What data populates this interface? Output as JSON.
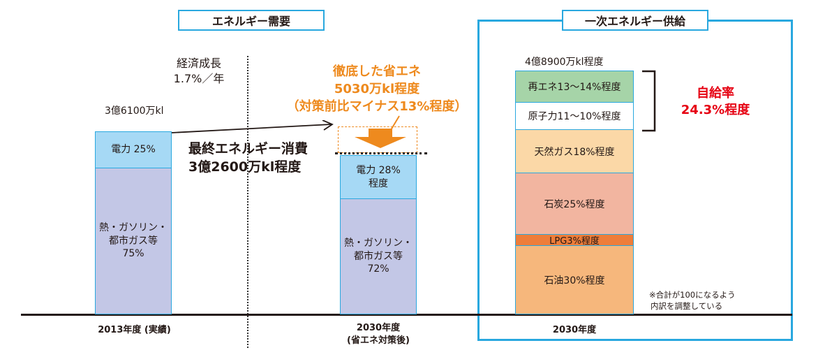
{
  "demand": {
    "header": "エネルギー需要",
    "growth": {
      "line1": "経済成長",
      "line2": "1.7%／年"
    },
    "bar2013": {
      "total": "3億6100万kl",
      "electric": "電力 25%",
      "heat": [
        "熱・ガソリン・",
        "都市ガス等",
        "75%"
      ],
      "axis_label": "2013年度 (実績)"
    },
    "final": {
      "line1": "最終エネルギー消費",
      "line2": "3億2600万kl程度"
    },
    "saving": {
      "line1": "徹底した省エネ",
      "line2": "5030万kl程度",
      "line3": "（対策前比マイナス13%程度）"
    },
    "bar2030": {
      "electric": [
        "電力 28%",
        "程度"
      ],
      "heat": [
        "熱・ガソリン・",
        "都市ガス等",
        "72%"
      ],
      "axis_label": "2030年度",
      "axis_sub": "(省エネ対策後)"
    }
  },
  "supply": {
    "header": "一次エネルギー供給",
    "total": "4億8900万kl程度",
    "segments": [
      {
        "label": "再エネ13～14%程度",
        "color": "#a6d4a8"
      },
      {
        "label": "原子力11～10%程度",
        "color": "#ffffff"
      },
      {
        "label": "天然ガス18%程度",
        "color": "#fbd8a7"
      },
      {
        "label": "石炭25%程度",
        "color": "#f2b5a0"
      },
      {
        "label": "LPG3%程度",
        "color": "#ee7d3a"
      },
      {
        "label": "石油30%程度",
        "color": "#f6b77c"
      }
    ],
    "self_sufficiency": {
      "line1": "自給率",
      "line2": "24.3%程度"
    },
    "note": {
      "line1": "※合計が100になるよう",
      "line2": "内訳を調整している"
    },
    "axis_label": "2030年度"
  },
  "colors": {
    "accent": "#29a8df",
    "orange": "#ee8a1e",
    "red": "#e60012"
  }
}
